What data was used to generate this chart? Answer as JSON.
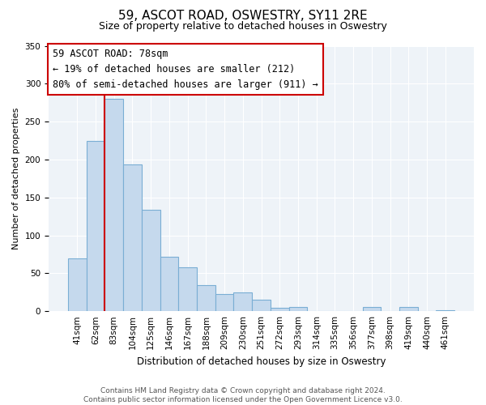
{
  "title": "59, ASCOT ROAD, OSWESTRY, SY11 2RE",
  "subtitle": "Size of property relative to detached houses in Oswestry",
  "xlabel": "Distribution of detached houses by size in Oswestry",
  "ylabel": "Number of detached properties",
  "bin_labels": [
    "41sqm",
    "62sqm",
    "83sqm",
    "104sqm",
    "125sqm",
    "146sqm",
    "167sqm",
    "188sqm",
    "209sqm",
    "230sqm",
    "251sqm",
    "272sqm",
    "293sqm",
    "314sqm",
    "335sqm",
    "356sqm",
    "377sqm",
    "398sqm",
    "419sqm",
    "440sqm",
    "461sqm"
  ],
  "bar_values": [
    70,
    224,
    280,
    193,
    134,
    72,
    58,
    34,
    23,
    25,
    15,
    4,
    6,
    0,
    0,
    0,
    5,
    0,
    6,
    0,
    1
  ],
  "bar_color": "#c5d9ed",
  "bar_edge_color": "#7aaed4",
  "vline_x_idx": 2,
  "vline_color": "#cc0000",
  "annotation_title": "59 ASCOT ROAD: 78sqm",
  "annotation_line1": "← 19% of detached houses are smaller (212)",
  "annotation_line2": "80% of semi-detached houses are larger (911) →",
  "annotation_box_color": "#ffffff",
  "annotation_box_edge": "#cc0000",
  "ylim": [
    0,
    350
  ],
  "yticks": [
    0,
    50,
    100,
    150,
    200,
    250,
    300,
    350
  ],
  "footer1": "Contains HM Land Registry data © Crown copyright and database right 2024.",
  "footer2": "Contains public sector information licensed under the Open Government Licence v3.0.",
  "bg_color": "#ffffff",
  "plot_bg_color": "#eef3f8",
  "grid_color": "#ffffff",
  "title_fontsize": 11,
  "subtitle_fontsize": 9,
  "ylabel_fontsize": 8,
  "xlabel_fontsize": 8.5,
  "tick_fontsize": 7.5,
  "footer_fontsize": 6.5
}
